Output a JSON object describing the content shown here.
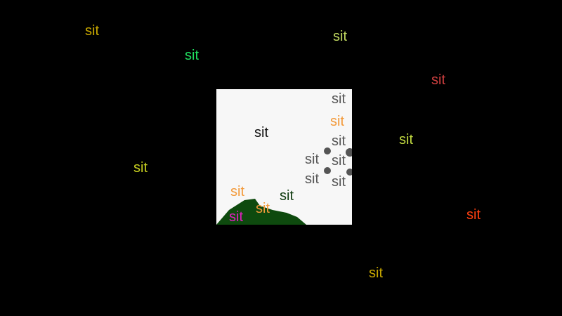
{
  "words": [
    {
      "text": "sit",
      "color": "#c8a800"
    },
    {
      "text": "sit",
      "color": "#20e060"
    },
    {
      "text": "sit",
      "color": "#c0d860"
    },
    {
      "text": "sit",
      "color": "#d04040"
    },
    {
      "text": "sit",
      "color": "#c0d840"
    },
    {
      "text": "sit",
      "color": "#c8d020"
    },
    {
      "text": "sit",
      "color": "#ff4010"
    },
    {
      "text": "sit",
      "color": "#c8a800"
    }
  ],
  "panel": {
    "background": "#f7f7f7",
    "words": [
      {
        "text": "sit",
        "color": "#111111"
      },
      {
        "text": "sit",
        "color": "#f39a3a"
      },
      {
        "text": "sit",
        "color": "#f39a3a"
      },
      {
        "text": "sit",
        "color": "#555555"
      },
      {
        "text": "sit",
        "color": "#555555"
      },
      {
        "text": "sit",
        "color": "#555555"
      },
      {
        "text": "sit",
        "color": "#555555"
      },
      {
        "text": "sit",
        "color": "#555555"
      },
      {
        "text": "sit",
        "color": "#555555"
      },
      {
        "text": "sit",
        "color": "#0e3a0e"
      },
      {
        "text": "sit",
        "color": "#f39a3a"
      },
      {
        "text": "sit",
        "color": "#e020c0"
      }
    ],
    "blob_color": "#0e4a0e",
    "cluster_color": "#555555"
  }
}
